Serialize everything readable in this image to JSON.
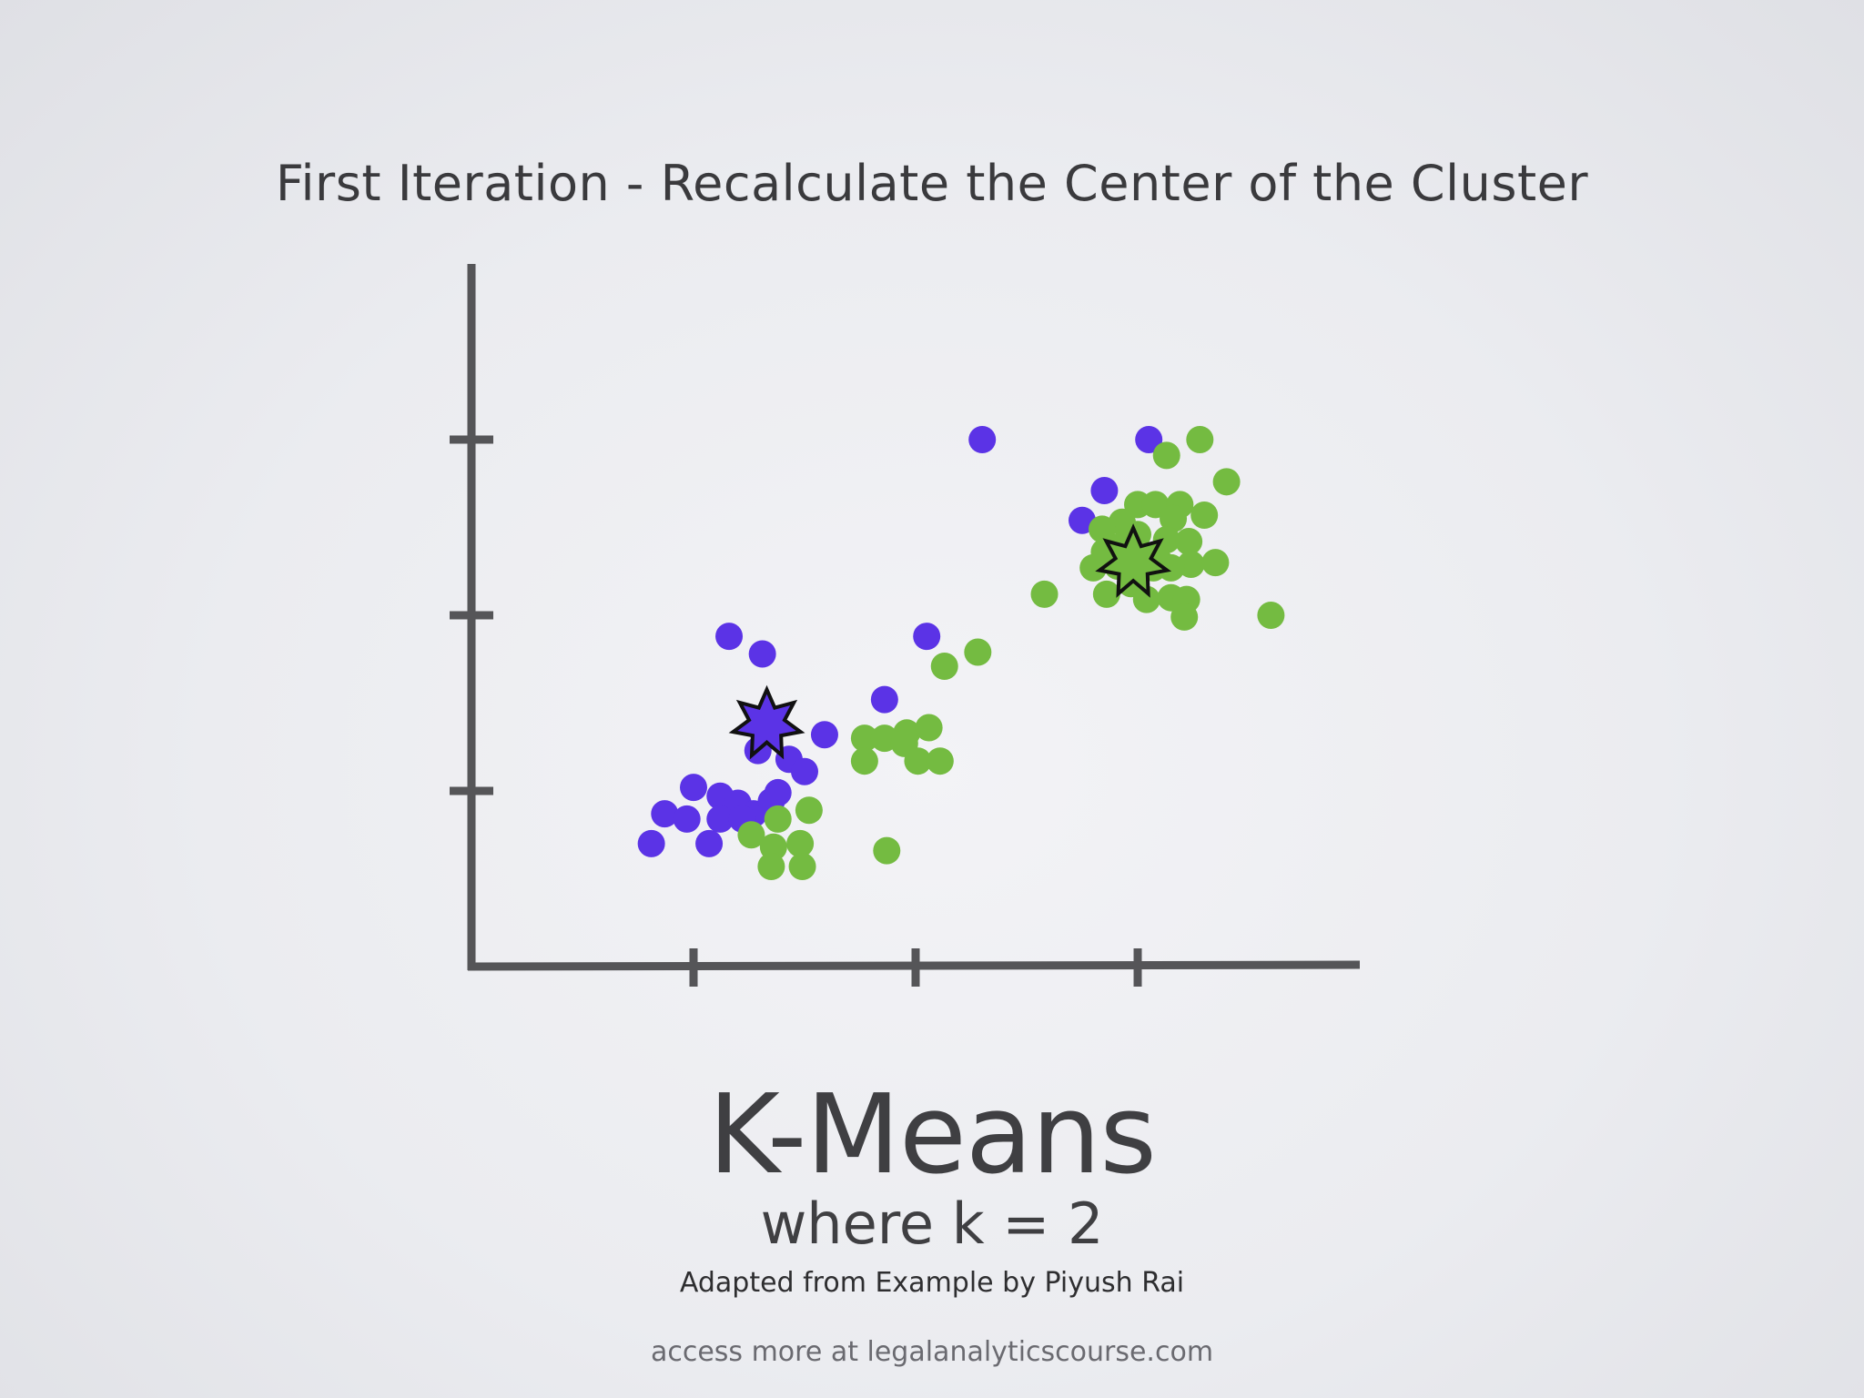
{
  "slide": {
    "title": "First Iteration - Recalculate the Center of the Cluster",
    "main_title": "K-Means",
    "subtitle": "where k = 2",
    "credit": "Adapted from Example by Piyush Rai",
    "footer": "access more at legalanalyticscourse.com"
  },
  "colors": {
    "purple": "#5b33e6",
    "green": "#74bb41",
    "axis": "#555558",
    "outline": "#111111"
  },
  "chart_data": {
    "type": "scatter",
    "title": "",
    "xlabel": "",
    "ylabel": "",
    "xlim": [
      0,
      4
    ],
    "ylim": [
      0,
      4
    ],
    "x_ticks": [
      1,
      2,
      3
    ],
    "y_ticks": [
      1,
      2,
      3
    ],
    "grid": false,
    "series": [
      {
        "color": "purple",
        "points": [
          [
            2.3,
            3.0
          ],
          [
            3.05,
            3.0
          ],
          [
            2.85,
            2.71
          ],
          [
            2.75,
            2.54
          ],
          [
            1.16,
            1.88
          ],
          [
            1.31,
            1.78
          ],
          [
            2.05,
            1.88
          ],
          [
            1.86,
            1.52
          ],
          [
            1.59,
            1.32
          ],
          [
            1.29,
            1.23
          ],
          [
            1.43,
            1.18
          ],
          [
            1.5,
            1.11
          ],
          [
            1.0,
            1.02
          ],
          [
            1.12,
            0.97
          ],
          [
            1.2,
            0.93
          ],
          [
            1.27,
            0.87
          ],
          [
            0.87,
            0.87
          ],
          [
            0.97,
            0.84
          ],
          [
            1.12,
            0.84
          ],
          [
            1.22,
            0.84
          ],
          [
            1.35,
            0.94
          ],
          [
            1.38,
            0.99
          ],
          [
            0.81,
            0.7
          ],
          [
            1.07,
            0.7
          ]
        ]
      },
      {
        "color": "green",
        "points": [
          [
            3.13,
            2.91
          ],
          [
            3.28,
            3.0
          ],
          [
            3.4,
            2.76
          ],
          [
            3.0,
            2.63
          ],
          [
            3.08,
            2.63
          ],
          [
            3.19,
            2.63
          ],
          [
            2.93,
            2.53
          ],
          [
            3.16,
            2.55
          ],
          [
            3.3,
            2.57
          ],
          [
            2.84,
            2.49
          ],
          [
            3.0,
            2.46
          ],
          [
            3.13,
            2.43
          ],
          [
            3.23,
            2.42
          ],
          [
            2.92,
            2.39
          ],
          [
            2.85,
            2.36
          ],
          [
            2.99,
            2.36
          ],
          [
            3.09,
            2.32
          ],
          [
            3.24,
            2.29
          ],
          [
            2.8,
            2.27
          ],
          [
            2.91,
            2.28
          ],
          [
            3.07,
            2.27
          ],
          [
            3.15,
            2.27
          ],
          [
            3.35,
            2.3
          ],
          [
            2.97,
            2.18
          ],
          [
            2.58,
            2.12
          ],
          [
            2.86,
            2.12
          ],
          [
            3.04,
            2.09
          ],
          [
            3.15,
            2.1
          ],
          [
            3.22,
            2.09
          ],
          [
            3.21,
            1.99
          ],
          [
            3.6,
            2.0
          ],
          [
            2.28,
            1.79
          ],
          [
            2.13,
            1.71
          ],
          [
            1.96,
            1.33
          ],
          [
            2.06,
            1.36
          ],
          [
            1.77,
            1.3
          ],
          [
            1.86,
            1.3
          ],
          [
            1.95,
            1.27
          ],
          [
            1.77,
            1.17
          ],
          [
            2.01,
            1.17
          ],
          [
            2.11,
            1.17
          ],
          [
            1.52,
            0.89
          ],
          [
            1.38,
            0.84
          ],
          [
            1.26,
            0.75
          ],
          [
            1.36,
            0.68
          ],
          [
            1.48,
            0.7
          ],
          [
            1.35,
            0.57
          ],
          [
            1.49,
            0.57
          ],
          [
            1.87,
            0.66
          ]
        ]
      }
    ],
    "centroids": [
      {
        "color": "purple",
        "x": 1.33,
        "y": 1.38
      },
      {
        "color": "green",
        "x": 2.98,
        "y": 2.3
      }
    ]
  }
}
